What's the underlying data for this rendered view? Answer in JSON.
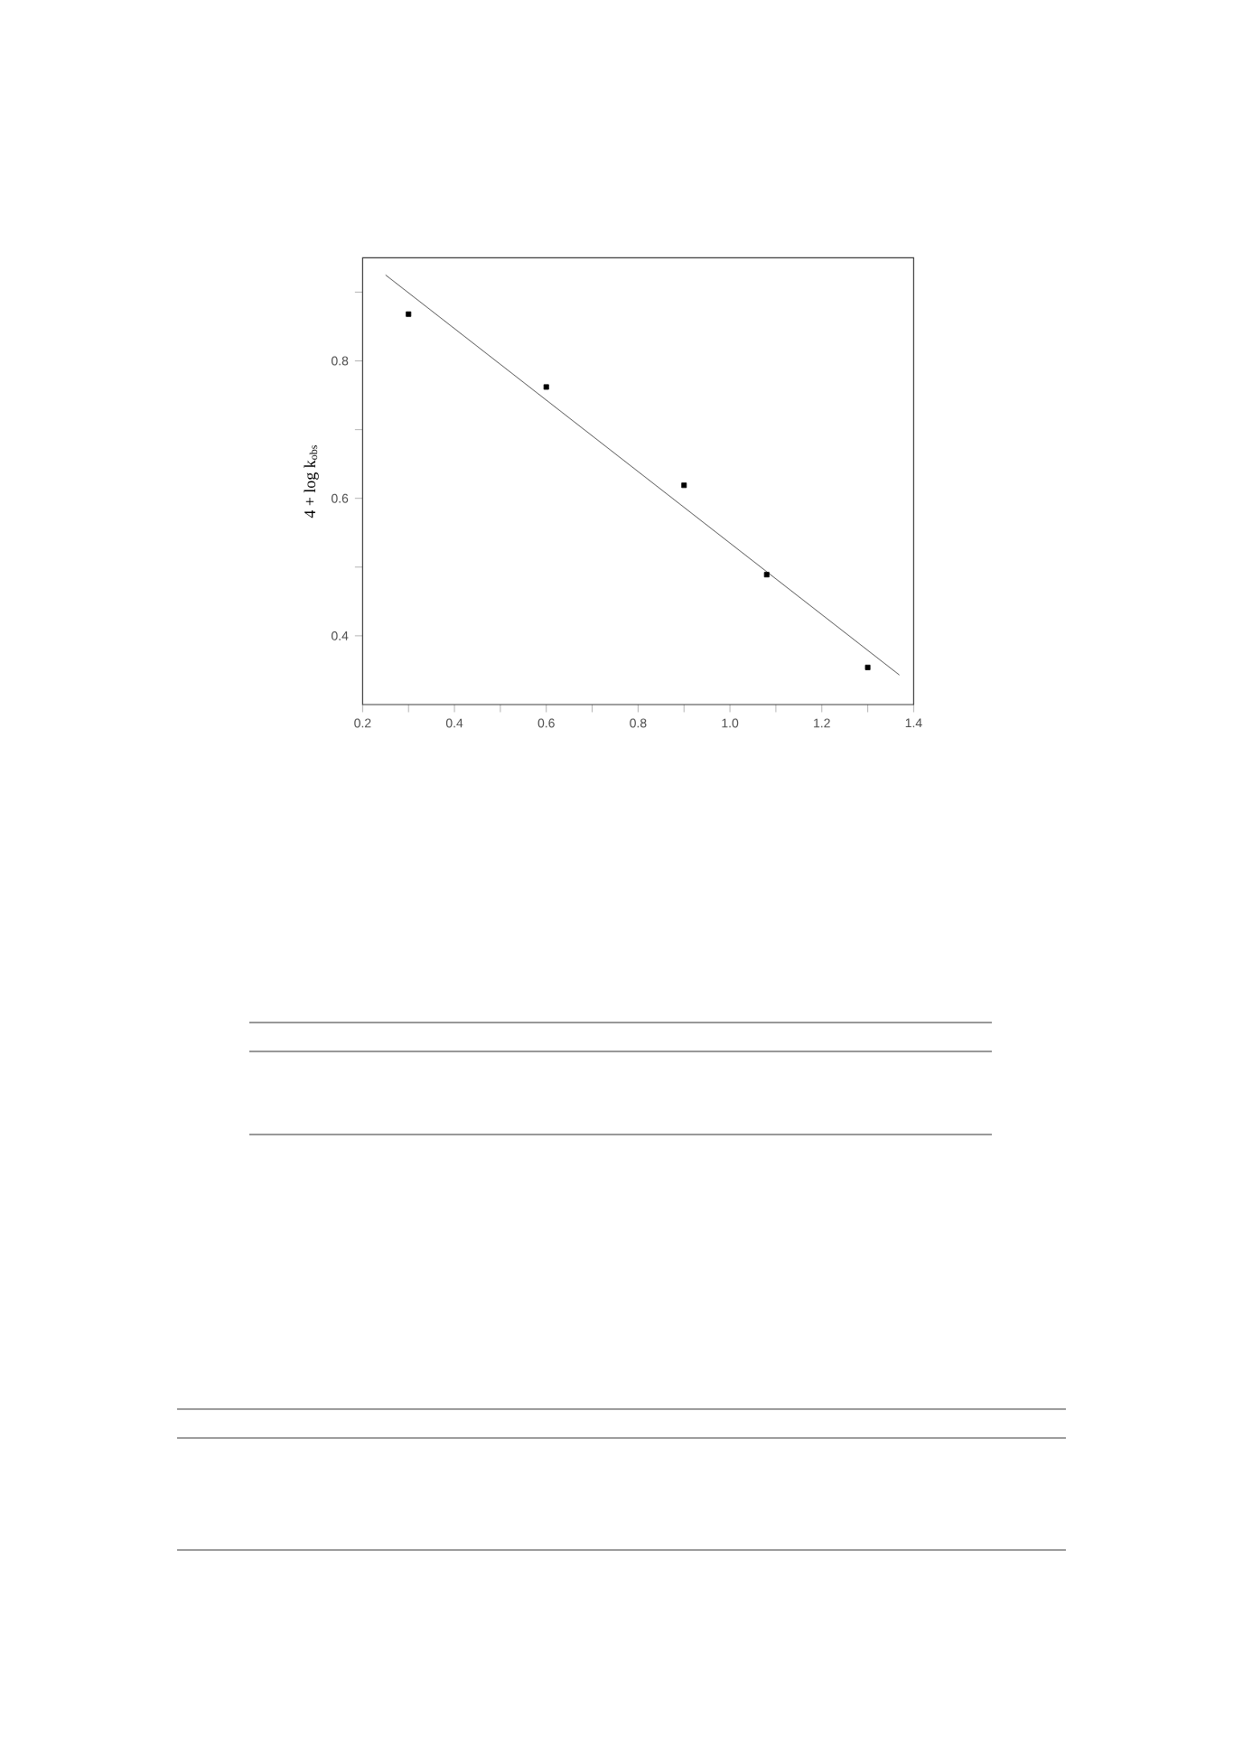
{
  "chart_data": {
    "type": "scatter",
    "ylabel": "4 + log k$_{obs}$",
    "xlim": [
      0.2,
      1.4
    ],
    "ylim": [
      0.3,
      0.95
    ],
    "xticks": [
      0.2,
      {
        "value": 0.3,
        "label": null
      },
      0.4,
      {
        "value": 0.5,
        "label": null
      },
      0.6,
      {
        "value": 0.7,
        "label": null
      },
      0.8,
      {
        "value": 0.9,
        "label": null
      },
      {
        "value": 1.0,
        "label": "1.0"
      },
      {
        "value": 1.1,
        "label": null
      },
      1.2,
      {
        "value": 1.3,
        "label": null
      },
      1.4
    ],
    "yticks": [
      0.4,
      {
        "value": 0.5,
        "label": null
      },
      0.6,
      {
        "value": 0.7,
        "label": null
      },
      0.8,
      {
        "value": 0.9,
        "label": null
      }
    ],
    "series": [
      {
        "marker": "square",
        "color": "#000000",
        "x": [
          0.3,
          0.6,
          0.9,
          1.08,
          1.3
        ],
        "values": [
          0.868,
          0.762,
          0.619,
          0.489,
          0.354
        ]
      },
      {
        "type": "line",
        "line_style": "solid",
        "marker": "none",
        "color": "#555555",
        "x": [
          0.25,
          1.369
        ],
        "values": [
          0.925,
          0.343
        ]
      }
    ]
  }
}
